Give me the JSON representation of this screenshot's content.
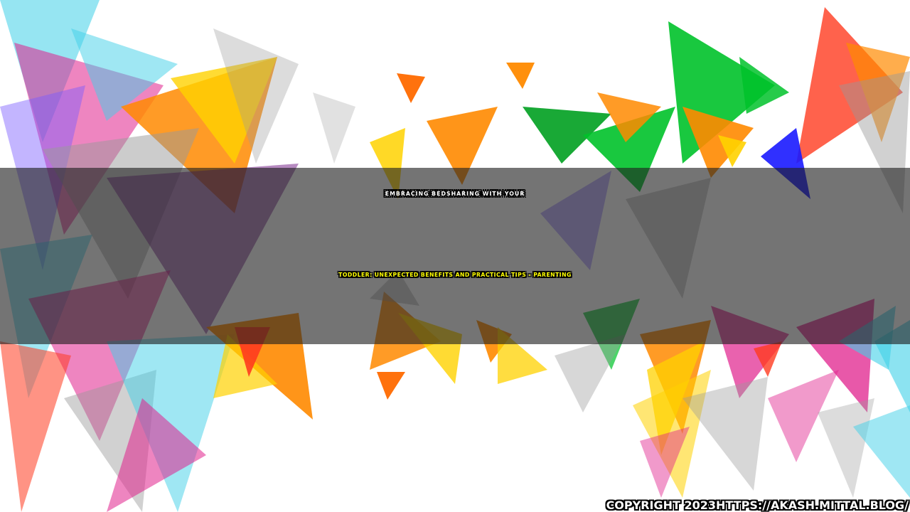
{
  "title": {
    "line1": "EMBRACING BEDSHARING WITH YOUR",
    "line2": "TODDLER: UNEXPECTED BENEFITS AND PRACTICAL TIPS - PARENTING"
  },
  "copyright": "COPYRIGHT 2023HTTPS://AKASH.MITTAL.BLOG/",
  "colors": {
    "title_main": "#ffffff",
    "title_sub": "#ffff00",
    "band": "#1e1e1e",
    "triangles": [
      "#ff8a00",
      "#ffd200",
      "#ff3b1f",
      "#00c22a",
      "#3fd0e8",
      "#7a5cff",
      "#e0208c",
      "#9a9a9a",
      "#1a1aff"
    ]
  }
}
